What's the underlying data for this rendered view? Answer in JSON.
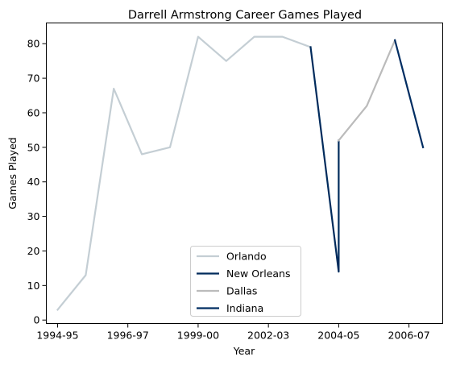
{
  "chart_data": {
    "type": "line",
    "title": "Darrell Armstrong Career Games Played",
    "xlabel": "Year",
    "ylabel": "Games Played",
    "x_tick_labels": [
      "1994-95",
      "1996-97",
      "1999-00",
      "2002-03",
      "2004-05",
      "2006-07"
    ],
    "y_ticks": [
      0,
      10,
      20,
      30,
      40,
      50,
      60,
      70,
      80
    ],
    "ylim": [
      -1,
      86
    ],
    "xlim": [
      1994.35,
      2008.45
    ],
    "legend_location": "lower center",
    "grid": false,
    "series": [
      {
        "name": "Orlando",
        "color": "#c4ced4",
        "points": [
          {
            "x": 1994.75,
            "y": 3
          },
          {
            "x": 1995.75,
            "y": 13
          },
          {
            "x": 1996.75,
            "y": 67
          },
          {
            "x": 1997.75,
            "y": 48
          },
          {
            "x": 1998.75,
            "y": 50
          },
          {
            "x": 1999.75,
            "y": 82
          },
          {
            "x": 2000.75,
            "y": 75
          },
          {
            "x": 2001.75,
            "y": 82
          },
          {
            "x": 2002.75,
            "y": 82
          },
          {
            "x": 2003.75,
            "y": 79
          }
        ]
      },
      {
        "name": "New Orleans",
        "color": "#002b5c",
        "points": [
          {
            "x": 2003.75,
            "y": 79
          },
          {
            "x": 2004.75,
            "y": 14
          },
          {
            "x": 2004.75,
            "y": 52
          }
        ]
      },
      {
        "name": "Dallas",
        "color": "#bbbbbb",
        "points": [
          {
            "x": 2004.75,
            "y": 52
          },
          {
            "x": 2005.75,
            "y": 62
          },
          {
            "x": 2006.75,
            "y": 81
          }
        ]
      },
      {
        "name": "Indiana",
        "color": "#002d62",
        "points": [
          {
            "x": 2006.75,
            "y": 81
          },
          {
            "x": 2007.75,
            "y": 50
          }
        ]
      }
    ]
  }
}
